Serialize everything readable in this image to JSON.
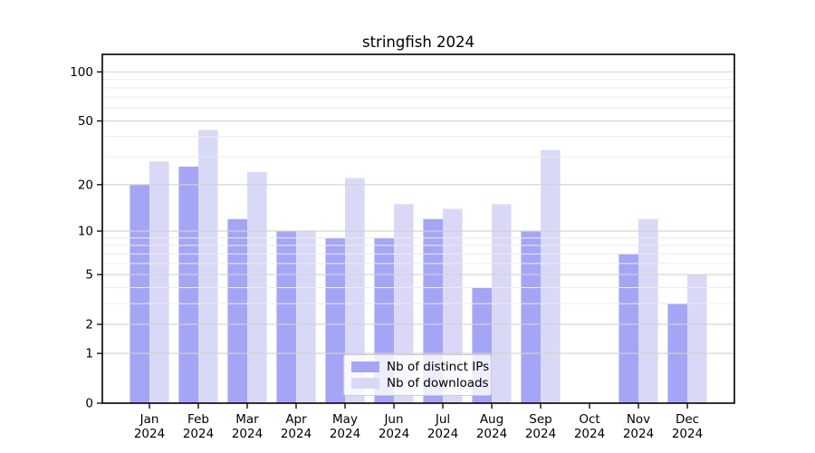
{
  "chart_data": {
    "type": "bar",
    "title": "stringfish 2024",
    "categories": [
      "Jan 2024",
      "Feb 2024",
      "Mar 2024",
      "Apr 2024",
      "May 2024",
      "Jun 2024",
      "Jul 2024",
      "Aug 2024",
      "Sep 2024",
      "Oct 2024",
      "Nov 2024",
      "Dec 2024"
    ],
    "series": [
      {
        "name": "Nb of distinct IPs",
        "color": "#a5a5f5",
        "values": [
          20,
          26,
          12,
          10,
          9,
          9,
          12,
          4,
          10,
          0,
          7,
          3
        ]
      },
      {
        "name": "Nb of downloads",
        "color": "#d9d9f7",
        "values": [
          28,
          44,
          24,
          10,
          22,
          15,
          14,
          15,
          33,
          0,
          12,
          5
        ]
      }
    ],
    "yticks": [
      0,
      1,
      2,
      5,
      10,
      20,
      50,
      100
    ],
    "y_scale": "log1p",
    "ylim": [
      0,
      128
    ],
    "xlabel": "",
    "ylabel": "",
    "grid": true,
    "legend_position": "bottom-center"
  }
}
